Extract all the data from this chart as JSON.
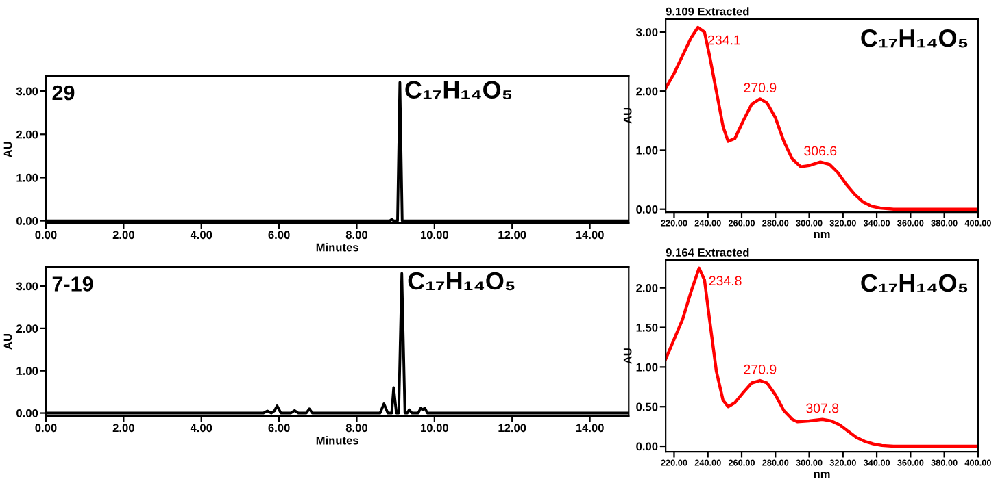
{
  "chart_data": [
    {
      "type": "line",
      "xlabel": "Minutes",
      "ylabel": "AU",
      "annotations": [
        "29",
        "C₁₇H₁₄O₅"
      ],
      "xlim": [
        0,
        15
      ],
      "ylim": [
        -0.05,
        3.35
      ],
      "xticks": [
        {
          "value": 0,
          "label": "0.00"
        },
        {
          "value": 2,
          "label": "2.00"
        },
        {
          "value": 4,
          "label": "4.00"
        },
        {
          "value": 6,
          "label": "6.00"
        },
        {
          "value": 8,
          "label": "8.00"
        },
        {
          "value": 10,
          "label": "10.00"
        },
        {
          "value": 12,
          "label": "12.00"
        },
        {
          "value": 14,
          "label": "14.00"
        }
      ],
      "yticks": [
        {
          "value": 0,
          "label": "0.00"
        },
        {
          "value": 1,
          "label": "1.00"
        },
        {
          "value": 2,
          "label": "2.00"
        },
        {
          "value": 3,
          "label": "3.00"
        }
      ],
      "series": [
        {
          "color": "#000000",
          "x": [
            0,
            8.85,
            8.9,
            8.95,
            9.05,
            9.11,
            9.17,
            9.25,
            15
          ],
          "values": [
            0,
            0,
            0.03,
            0,
            0,
            3.2,
            0,
            0,
            0
          ]
        }
      ]
    },
    {
      "type": "line",
      "xlabel": "Minutes",
      "ylabel": "AU",
      "annotations": [
        "7-19",
        "C₁₇H₁₄O₅"
      ],
      "xlim": [
        0,
        15
      ],
      "ylim": [
        -0.07,
        3.45
      ],
      "xticks": [
        {
          "value": 0,
          "label": "0.00"
        },
        {
          "value": 2,
          "label": "2.00"
        },
        {
          "value": 4,
          "label": "4.00"
        },
        {
          "value": 6,
          "label": "6.00"
        },
        {
          "value": 8,
          "label": "8.00"
        },
        {
          "value": 10,
          "label": "10.00"
        },
        {
          "value": 12,
          "label": "12.00"
        },
        {
          "value": 14,
          "label": "14.00"
        }
      ],
      "yticks": [
        {
          "value": 0,
          "label": "0.00"
        },
        {
          "value": 1,
          "label": "1.00"
        },
        {
          "value": 2,
          "label": "2.00"
        },
        {
          "value": 3,
          "label": "3.00"
        }
      ],
      "series": [
        {
          "color": "#000000",
          "x": [
            0,
            5.6,
            5.7,
            5.8,
            5.88,
            5.95,
            6.05,
            6.3,
            6.4,
            6.5,
            6.7,
            6.78,
            6.86,
            8.6,
            8.7,
            8.8,
            8.9,
            8.95,
            9.02,
            9.08,
            9.16,
            9.24,
            9.3,
            9.35,
            9.42,
            9.58,
            9.65,
            9.7,
            9.75,
            9.82,
            15
          ],
          "values": [
            0,
            0,
            0.05,
            0,
            0.05,
            0.17,
            0,
            0,
            0.06,
            0,
            0,
            0.1,
            0,
            0,
            0.22,
            0,
            0,
            0.6,
            0,
            0,
            3.3,
            0,
            0,
            0.08,
            0,
            0,
            0.12,
            0.08,
            0.12,
            0,
            0
          ]
        }
      ]
    },
    {
      "type": "line",
      "title": "9.109 Extracted",
      "xlabel": "nm",
      "ylabel": "AU",
      "annotations": [
        "C₁₇H₁₄O₅",
        {
          "text": "234.1",
          "x": 234.1,
          "y": 3.08
        },
        {
          "text": "270.9",
          "x": 270.9,
          "y": 1.87
        },
        {
          "text": "306.6",
          "x": 306.6,
          "y": 0.8
        }
      ],
      "xlim": [
        215,
        400
      ],
      "ylim": [
        -0.05,
        3.22
      ],
      "xticks": [
        {
          "value": 220,
          "label": "220.00"
        },
        {
          "value": 240,
          "label": "240.00"
        },
        {
          "value": 260,
          "label": "260.00"
        },
        {
          "value": 280,
          "label": "280.00"
        },
        {
          "value": 300,
          "label": "300.00"
        },
        {
          "value": 320,
          "label": "320.00"
        },
        {
          "value": 340,
          "label": "340.00"
        },
        {
          "value": 360,
          "label": "360.00"
        },
        {
          "value": 380,
          "label": "380.00"
        },
        {
          "value": 400,
          "label": "400.00"
        }
      ],
      "yticks": [
        {
          "value": 0,
          "label": "0.00"
        },
        {
          "value": 1,
          "label": "1.00"
        },
        {
          "value": 2,
          "label": "2.00"
        },
        {
          "value": 3,
          "label": "3.00"
        }
      ],
      "series": [
        {
          "color": "#ff0000",
          "x": [
            215,
            220,
            225,
            230,
            234.1,
            238,
            241,
            245,
            249,
            252,
            256,
            261,
            266,
            270.9,
            275,
            280,
            285,
            290,
            295,
            300,
            306.6,
            312,
            317,
            322,
            327,
            332,
            337,
            342,
            350,
            360,
            380,
            400
          ],
          "values": [
            2.05,
            2.3,
            2.6,
            2.9,
            3.08,
            3.0,
            2.6,
            2.0,
            1.4,
            1.15,
            1.2,
            1.5,
            1.78,
            1.87,
            1.8,
            1.55,
            1.15,
            0.85,
            0.72,
            0.74,
            0.8,
            0.76,
            0.62,
            0.42,
            0.25,
            0.12,
            0.05,
            0.02,
            0.0,
            0.0,
            0.0,
            0.0
          ]
        }
      ]
    },
    {
      "type": "line",
      "title": "9.164 Extracted",
      "xlabel": "nm",
      "ylabel": "AU",
      "annotations": [
        "C₁₇H₁₄O₅",
        {
          "text": "234.8",
          "x": 234.8,
          "y": 2.25
        },
        {
          "text": "270.9",
          "x": 270.9,
          "y": 0.83
        },
        {
          "text": "307.8",
          "x": 307.8,
          "y": 0.34
        }
      ],
      "xlim": [
        215,
        400
      ],
      "ylim": [
        -0.07,
        2.35
      ],
      "xticks": [
        {
          "value": 220,
          "label": "220.00"
        },
        {
          "value": 240,
          "label": "240.00"
        },
        {
          "value": 260,
          "label": "260.00"
        },
        {
          "value": 280,
          "label": "280.00"
        },
        {
          "value": 300,
          "label": "300.00"
        },
        {
          "value": 320,
          "label": "320.00"
        },
        {
          "value": 340,
          "label": "340.00"
        },
        {
          "value": 360,
          "label": "360.00"
        },
        {
          "value": 380,
          "label": "380.00"
        },
        {
          "value": 400,
          "label": "400.00"
        }
      ],
      "yticks": [
        {
          "value": 0,
          "label": "0.00"
        },
        {
          "value": 0.5,
          "label": "0.50"
        },
        {
          "value": 1,
          "label": "1.00"
        },
        {
          "value": 1.5,
          "label": "1.50"
        },
        {
          "value": 2,
          "label": "2.00"
        }
      ],
      "series": [
        {
          "color": "#ff0000",
          "x": [
            215,
            220,
            225,
            230,
            234.8,
            238,
            241,
            245,
            249,
            252,
            256,
            261,
            266,
            270.9,
            275,
            280,
            285,
            290,
            293,
            300,
            307.8,
            313,
            318,
            323,
            328,
            333,
            338,
            343,
            350,
            360,
            380,
            400
          ],
          "values": [
            1.1,
            1.35,
            1.6,
            1.95,
            2.25,
            2.1,
            1.6,
            0.95,
            0.58,
            0.5,
            0.55,
            0.68,
            0.8,
            0.83,
            0.8,
            0.65,
            0.45,
            0.34,
            0.31,
            0.32,
            0.34,
            0.32,
            0.27,
            0.19,
            0.11,
            0.06,
            0.03,
            0.01,
            0.0,
            0.0,
            0.0,
            0.0
          ]
        }
      ]
    }
  ]
}
